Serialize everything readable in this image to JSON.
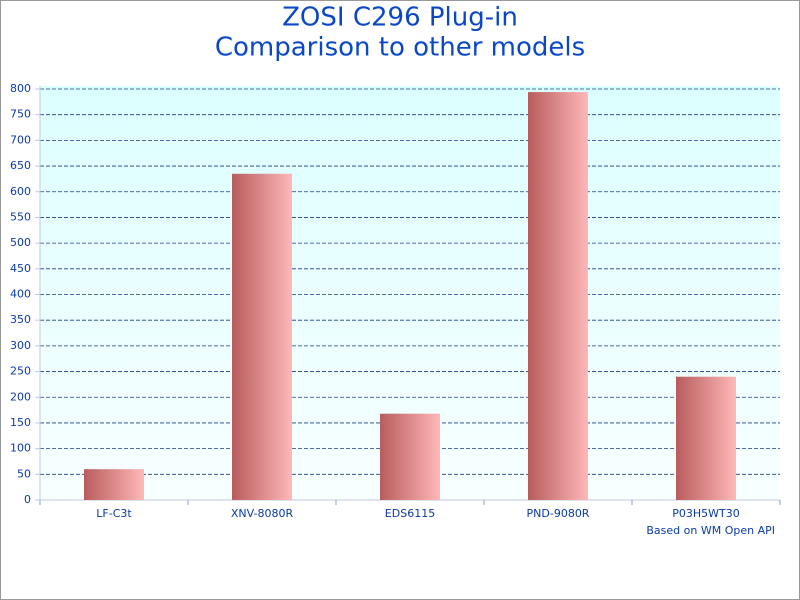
{
  "chart_data": {
    "type": "bar",
    "title": [
      "ZOSI C296 Plug-in",
      "Comparison to other models"
    ],
    "categories": [
      "LF-C3t",
      "XNV-8080R",
      "EDS6115",
      "PND-9080R",
      "P03H5WT30"
    ],
    "values": [
      60,
      635,
      168,
      794,
      240
    ],
    "color": "#b85c5c",
    "ylim": [
      0,
      800
    ],
    "yticks": [
      0,
      50,
      100,
      150,
      200,
      250,
      300,
      350,
      400,
      450,
      500,
      550,
      600,
      650,
      700,
      750,
      800
    ],
    "grid": true,
    "annotation": "Based on WM Open API"
  }
}
